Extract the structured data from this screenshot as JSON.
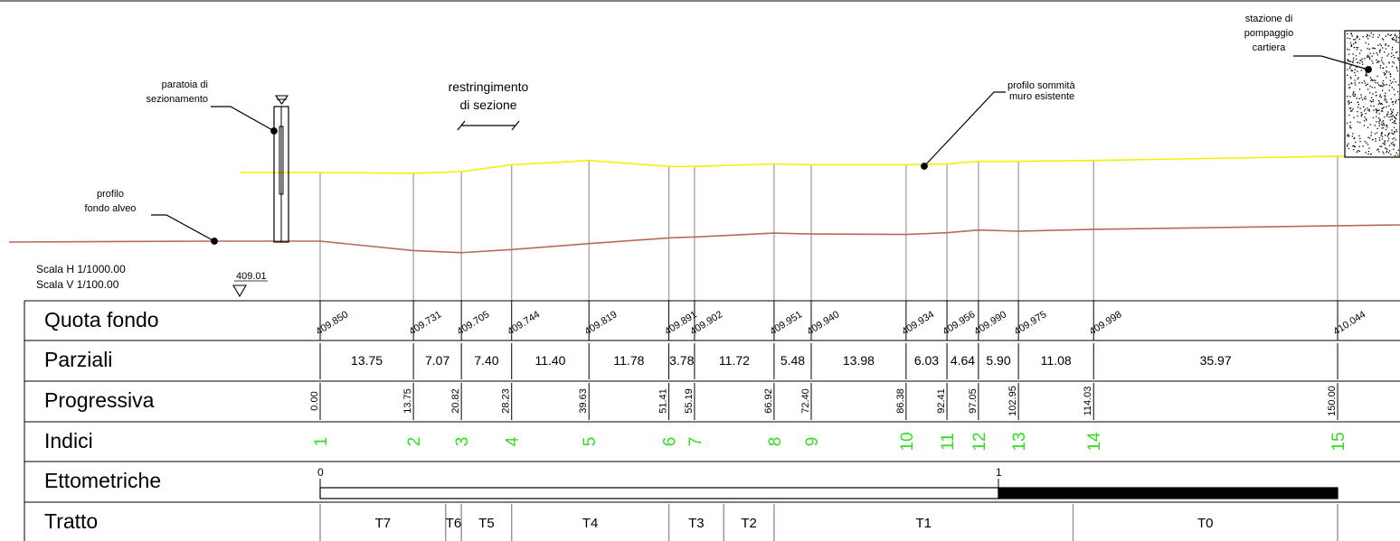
{
  "labels": {
    "paratoia": [
      "paratoia di",
      "sezionamento"
    ],
    "restringimento": [
      "restringimento",
      "di sezione"
    ],
    "profilo_sommita": [
      "profilo sommità",
      "muro esistente"
    ],
    "stazione": [
      "stazione di",
      "pompaggio",
      "cartiera"
    ],
    "profilo_fondo": [
      "profilo",
      "fondo alveo"
    ],
    "scala_h": "Scala H  1/1000.00",
    "scala_v": "Scala V  1/100.00",
    "datum": "409.01"
  },
  "rows": {
    "quota": "Quota fondo",
    "parziali": "Parziali",
    "progressiva": "Progressiva",
    "indici": "Indici",
    "ettometriche": "Ettometriche",
    "tratto": "Tratto"
  },
  "sections": [
    {
      "index": "1",
      "progressiva": "0.00",
      "quota": "409.850",
      "bed": 409.85,
      "wall": 410.78
    },
    {
      "index": "2",
      "progressiva": "13.75",
      "quota": "409.731",
      "bed": 409.731,
      "wall": 410.77
    },
    {
      "index": "3",
      "progressiva": "20.82",
      "quota": "409.705",
      "bed": 409.705,
      "wall": 410.79
    },
    {
      "index": "4",
      "progressiva": "28.23",
      "quota": "409.744",
      "bed": 409.744,
      "wall": 410.87
    },
    {
      "index": "5",
      "progressiva": "39.63",
      "quota": "409.819",
      "bed": 409.819,
      "wall": 410.92
    },
    {
      "index": "6",
      "progressiva": "51.41",
      "quota": "409.891",
      "bed": 409.891,
      "wall": 410.85
    },
    {
      "index": "7",
      "progressiva": "55.19",
      "quota": "409.902",
      "bed": 409.902,
      "wall": 410.85
    },
    {
      "index": "8",
      "progressiva": "66.92",
      "quota": "409.951",
      "bed": 409.951,
      "wall": 410.88
    },
    {
      "index": "9",
      "progressiva": "72.40",
      "quota": "409.940",
      "bed": 409.94,
      "wall": 410.87
    },
    {
      "index": "10",
      "progressiva": "86.38",
      "quota": "409.934",
      "bed": 409.934,
      "wall": 410.87
    },
    {
      "index": "11",
      "progressiva": "92.41",
      "quota": "409.956",
      "bed": 409.956,
      "wall": 410.88
    },
    {
      "index": "12",
      "progressiva": "97.05",
      "quota": "409.990",
      "bed": 409.99,
      "wall": 410.91
    },
    {
      "index": "13",
      "progressiva": "102.95",
      "quota": "409.975",
      "bed": 409.975,
      "wall": 410.91
    },
    {
      "index": "14",
      "progressiva": "114.03",
      "quota": "409.998",
      "bed": 409.998,
      "wall": 410.92
    },
    {
      "index": "15",
      "progressiva": "150.00",
      "quota": "410.044",
      "bed": 410.044,
      "wall": 410.97
    }
  ],
  "parziali": [
    "13.75",
    "7.07",
    "7.40",
    "11.40",
    "11.78",
    "3.78",
    "11.72",
    "5.48",
    "13.98",
    "6.03",
    "4.64",
    "5.90",
    "11.08",
    "35.97"
  ],
  "ettometriche": [
    "0",
    "1"
  ],
  "tratti": [
    {
      "label": "T7",
      "from": -1,
      "to": 18.5
    },
    {
      "label": "T6",
      "from": 18.5,
      "to": 20.82
    },
    {
      "label": "T5",
      "from": 20.82,
      "to": 28.23
    },
    {
      "label": "T4",
      "from": 28.23,
      "to": 51.41
    },
    {
      "label": "T3",
      "from": 51.41,
      "to": 59.5
    },
    {
      "label": "T2",
      "from": 59.5,
      "to": 66.92
    },
    {
      "label": "T1",
      "from": 66.92,
      "to": 111.0
    },
    {
      "label": "T0",
      "from": 111.0,
      "to": 150.0
    }
  ],
  "colors": {
    "bed_profile": "#b56a5a",
    "wall_profile": "#f2f200",
    "indices": "#33dd22",
    "grid": "#999999"
  }
}
